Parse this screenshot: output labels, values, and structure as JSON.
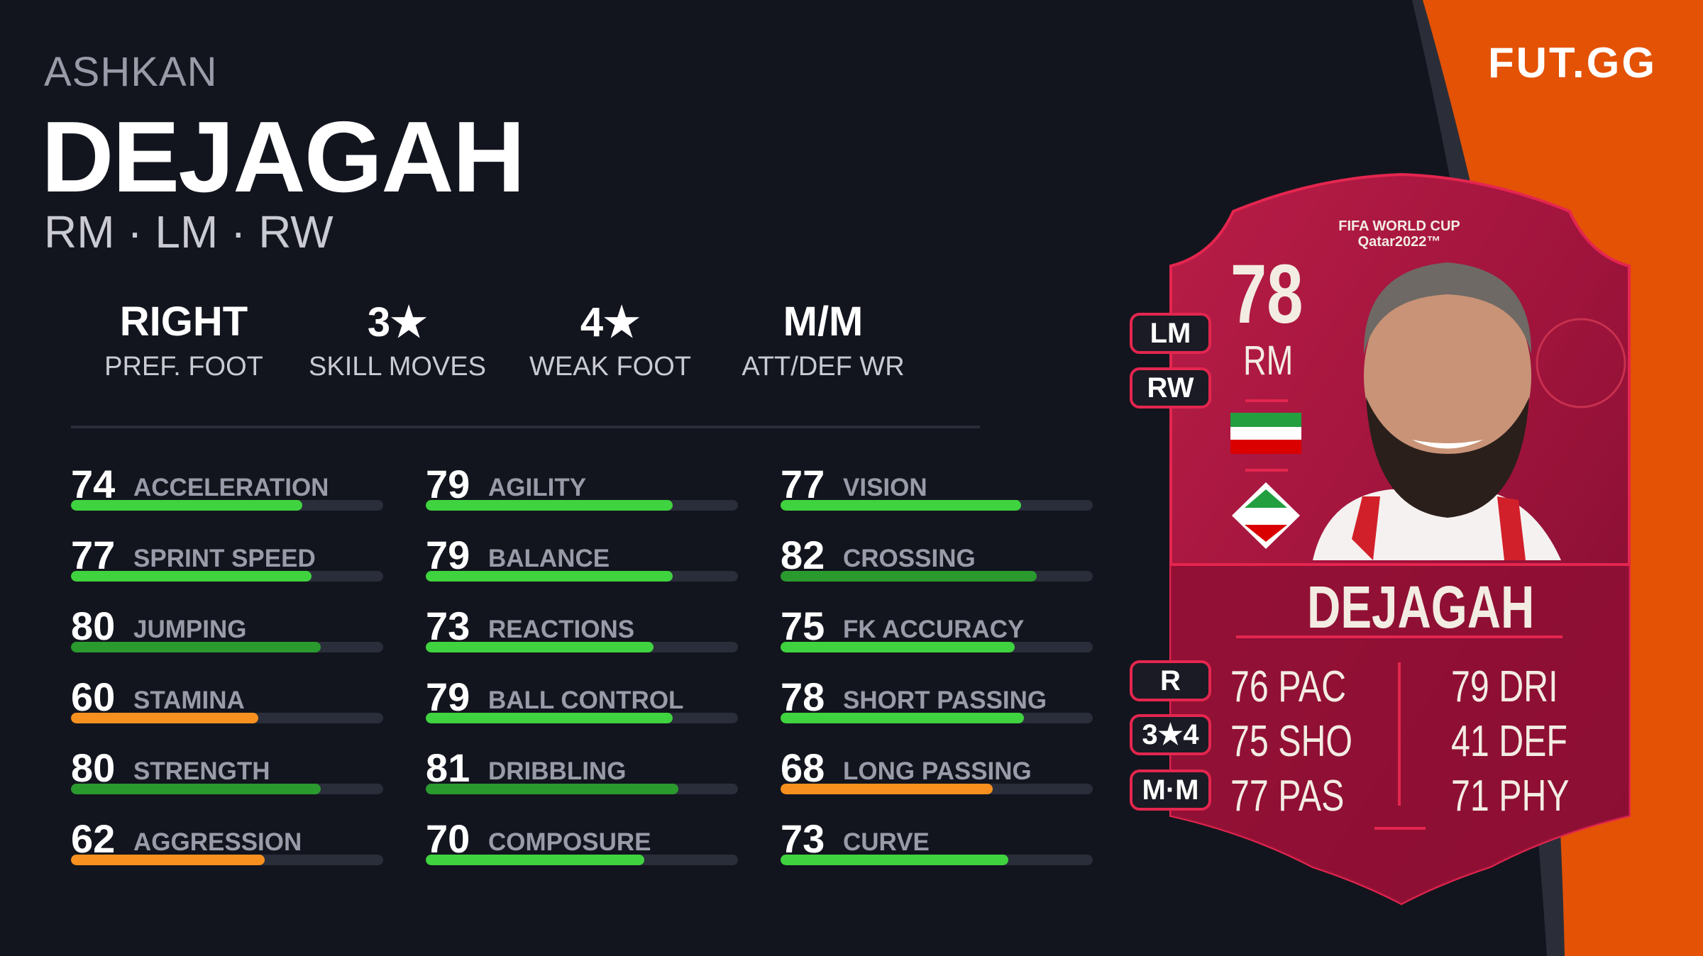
{
  "player": {
    "first_name": "ASHKAN",
    "last_name": "DEJAGAH",
    "positions": "RM · LM · RW"
  },
  "info": [
    {
      "value": "RIGHT",
      "label": "PREF. FOOT"
    },
    {
      "value": "3★",
      "label": "SKILL MOVES"
    },
    {
      "value": "4★",
      "label": "WEAK FOOT"
    },
    {
      "value": "M/M",
      "label": "ATT/DEF WR"
    }
  ],
  "stat_columns": [
    [
      {
        "value": 74,
        "label": "ACCELERATION",
        "color": "#3fd33f"
      },
      {
        "value": 77,
        "label": "SPRINT SPEED",
        "color": "#3fd33f"
      },
      {
        "value": 80,
        "label": "JUMPING",
        "color": "#2a9a2f"
      },
      {
        "value": 60,
        "label": "STAMINA",
        "color": "#f7901e"
      },
      {
        "value": 80,
        "label": "STRENGTH",
        "color": "#2a9a2f"
      },
      {
        "value": 62,
        "label": "AGGRESSION",
        "color": "#f7901e"
      }
    ],
    [
      {
        "value": 79,
        "label": "AGILITY",
        "color": "#3fd33f"
      },
      {
        "value": 79,
        "label": "BALANCE",
        "color": "#3fd33f"
      },
      {
        "value": 73,
        "label": "REACTIONS",
        "color": "#3fd33f"
      },
      {
        "value": 79,
        "label": "BALL CONTROL",
        "color": "#3fd33f"
      },
      {
        "value": 81,
        "label": "DRIBBLING",
        "color": "#2a9a2f"
      },
      {
        "value": 70,
        "label": "COMPOSURE",
        "color": "#3fd33f"
      }
    ],
    [
      {
        "value": 77,
        "label": "VISION",
        "color": "#3fd33f"
      },
      {
        "value": 82,
        "label": "CROSSING",
        "color": "#2a9a2f"
      },
      {
        "value": 75,
        "label": "FK ACCURACY",
        "color": "#3fd33f"
      },
      {
        "value": 78,
        "label": "SHORT PASSING",
        "color": "#3fd33f"
      },
      {
        "value": 68,
        "label": "LONG PASSING",
        "color": "#f7901e"
      },
      {
        "value": 73,
        "label": "CURVE",
        "color": "#3fd33f"
      }
    ]
  ],
  "logo": "FUT.GG",
  "card": {
    "rating": "78",
    "position": "RM",
    "name": "DEJAGAH",
    "event_logo_line1": "FIFA WORLD CUP",
    "event_logo_line2": "Qatar2022™",
    "alt_positions": [
      "LM",
      "RW"
    ],
    "foot": "R",
    "skill_weak": "3★4",
    "work_rates": "M·M",
    "stats_left": [
      {
        "value": "76",
        "label": "PAC"
      },
      {
        "value": "75",
        "label": "SHO"
      },
      {
        "value": "77",
        "label": "PAS"
      }
    ],
    "stats_right": [
      {
        "value": "79",
        "label": "DRI"
      },
      {
        "value": "41",
        "label": "DEF"
      },
      {
        "value": "71",
        "label": "PHY"
      }
    ],
    "nation": "Iran"
  },
  "colors": {
    "background": "#13151e",
    "accent": "#e35205",
    "card": "#a8153f",
    "green": "#3fd33f",
    "dark_green": "#2a9a2f",
    "orange": "#f7901e"
  }
}
